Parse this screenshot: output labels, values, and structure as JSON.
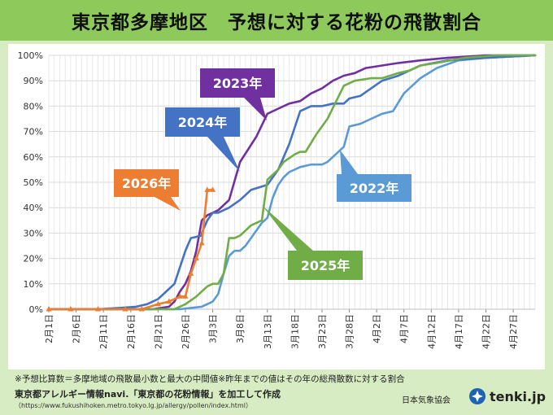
{
  "title": "東京都多摩地区　予想に対する花粉の飛散割合",
  "notes": {
    "line1": "※予想比算数＝多摩地域の飛散最小数と最大の中間値※昨年までの値はその年の総飛散数に対する割合",
    "line2": "東京都アレルギー情報navi.「東京都の花粉情報」を加工して作成",
    "line3": "（https://www.fukushihoken.metro.tokyo.lg.jp/allergy/pollen/index.html）"
  },
  "agency": "日本気象協会",
  "logo": {
    "text": "tenki.jp",
    "icon": "tenki-logo-icon"
  },
  "chart_data": {
    "type": "line",
    "title": "東京都多摩地区　予想に対する花粉の飛散割合",
    "xlabel": "",
    "ylabel": "",
    "ylim": [
      0,
      100
    ],
    "y_ticks": [
      "0%",
      "10%",
      "20%",
      "30%",
      "40%",
      "50%",
      "60%",
      "70%",
      "80%",
      "90%",
      "100%"
    ],
    "x_range_days": [
      "2月1日",
      "5月1日"
    ],
    "x_tick_labels": [
      "2月1日",
      "2月6日",
      "2月11日",
      "2月16日",
      "2月21日",
      "2月26日",
      "3月3日",
      "3月8日",
      "3月13日",
      "3月18日",
      "3月23日",
      "3月28日",
      "4月2日",
      "4月7日",
      "4月12日",
      "4月17日",
      "4月22日",
      "4月27日"
    ],
    "grid": "vertical-and-horizontal",
    "series": [
      {
        "name": "2022年",
        "color": "#5b9bd5",
        "x": [
          "2月1日",
          "2月20日",
          "2月25日",
          "2月27日",
          "3月1日",
          "3月3日",
          "3月4日",
          "3月5日",
          "3月6日",
          "3月7日",
          "3月8日",
          "3月9日",
          "3月10日",
          "3月11日",
          "3月12日",
          "3月13日",
          "3月14日",
          "3月15日",
          "3月16日",
          "3月17日",
          "3月19日",
          "3月21日",
          "3月23日",
          "3月24日",
          "3月25日",
          "3月27日",
          "3月28日",
          "3月30日",
          "4月1日",
          "4月3日",
          "4月5日",
          "4月7日",
          "4月10日",
          "4月13日",
          "4月17日",
          "4月22日",
          "5月1日"
        ],
        "values": [
          0,
          0,
          0,
          0.5,
          1,
          3,
          6,
          14,
          21,
          23,
          23,
          25,
          28,
          31,
          34,
          36,
          44,
          49,
          52,
          54,
          56,
          57,
          57,
          58,
          60,
          64,
          72,
          73,
          75,
          77,
          78,
          85,
          91,
          95,
          98,
          99,
          100
        ]
      },
      {
        "name": "2023年",
        "color": "#7030a0",
        "x": [
          "2月1日",
          "2月20日",
          "2月23日",
          "2月24日",
          "2月25日",
          "2月26日",
          "2月27日",
          "2月28日",
          "3月1日",
          "3月2日",
          "3月4日",
          "3月5日",
          "3月6日",
          "3月8日",
          "3月11日",
          "3月13日",
          "3月15日",
          "3月17日",
          "3月19日",
          "3月21日",
          "3月23日",
          "3月25日",
          "3月27日",
          "3月29日",
          "3月31日",
          "4月3日",
          "4月6日",
          "4月10日",
          "4月15日",
          "4月22日",
          "5月1日"
        ],
        "values": [
          0,
          0,
          1,
          3,
          7,
          10,
          15,
          23,
          35,
          37,
          39,
          41,
          43,
          58,
          68,
          77,
          79,
          81,
          82,
          85,
          87,
          90,
          92,
          93,
          95,
          96,
          97,
          98,
          99,
          100,
          100
        ]
      },
      {
        "name": "2024年",
        "color": "#4472c4",
        "x": [
          "2月1日",
          "2月10日",
          "2月14日",
          "2月17日",
          "2月19日",
          "2月21日",
          "2月24日",
          "2月26日",
          "2月27日",
          "2月29日",
          "3月1日",
          "3月2日",
          "3月3日",
          "3月4日",
          "3月6日",
          "3月8日",
          "3月10日",
          "3月13日",
          "3月15日",
          "3月17日",
          "3月19日",
          "3月21日",
          "3月23日",
          "3月25日",
          "3月27日",
          "3月28日",
          "3月30日",
          "4月1日",
          "4月3日",
          "4月6日",
          "4月10日",
          "4月15日",
          "4月22日",
          "5月1日"
        ],
        "values": [
          0,
          0,
          0.5,
          1,
          2,
          4,
          10,
          23,
          28,
          29,
          30,
          35,
          38,
          38,
          40,
          43,
          47,
          49,
          55,
          65,
          78,
          80,
          80,
          81,
          81,
          83,
          84,
          87,
          90,
          92,
          96,
          98,
          99,
          100
        ]
      },
      {
        "name": "2025年",
        "color": "#70ad47",
        "x": [
          "2月1日",
          "2月24日",
          "2月26日",
          "2月28日",
          "3月1日",
          "3月2日",
          "3月3日",
          "3月4日",
          "3月5日",
          "3月6日",
          "3月7日",
          "3月8日",
          "3月9日",
          "3月10日",
          "3月11日",
          "3月12日",
          "3月13日",
          "3月14日",
          "3月15日",
          "3月16日",
          "3月18日",
          "3月19日",
          "3月20日",
          "3月22日",
          "3月24日",
          "3月27日",
          "3月29日",
          "4月1日",
          "4月3日",
          "4月6日",
          "4月8日",
          "4月10日",
          "4月13日",
          "4月18日",
          "4月24日",
          "5月1日"
        ],
        "values": [
          0,
          0,
          2,
          5,
          7,
          9,
          10,
          10,
          14,
          28,
          28,
          29,
          31,
          33,
          34,
          35,
          51,
          53,
          55,
          58,
          61,
          62,
          62,
          69,
          75,
          88,
          90,
          91,
          91,
          93,
          94,
          96,
          97,
          99,
          100,
          100
        ]
      },
      {
        "name": "2026年",
        "color": "#ed7d31",
        "x": [
          "2月1日",
          "2月5日",
          "2月10日",
          "2月15日",
          "2月18日",
          "2月21日",
          "2月23日",
          "2月25日",
          "2月26日",
          "2月27日",
          "2月28日",
          "3月1日",
          "3月2日",
          "3月3日"
        ],
        "values": [
          0,
          0,
          0,
          0,
          0,
          2,
          3,
          5,
          5,
          14,
          20,
          26,
          47,
          47
        ]
      }
    ],
    "labels": [
      "2023年",
      "2024年",
      "2026年",
      "2022年",
      "2025年"
    ]
  }
}
